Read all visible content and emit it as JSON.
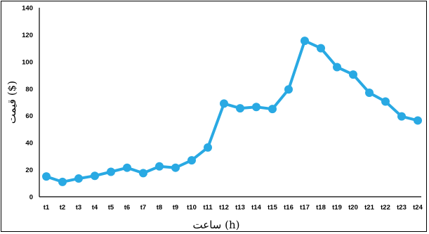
{
  "chart_data": {
    "type": "line",
    "title": "",
    "xlabel": "ساعت (h)",
    "ylabel": "قیمت ($)",
    "categories": [
      "t1",
      "t2",
      "t3",
      "t4",
      "t5",
      "t6",
      "t7",
      "t8",
      "t9",
      "t10",
      "t11",
      "t12",
      "t13",
      "t14",
      "t15",
      "t16",
      "t17",
      "t18",
      "t19",
      "t20",
      "t21",
      "t22",
      "t23",
      "t24"
    ],
    "series": [
      {
        "values": [
          15,
          11,
          13.5,
          15.5,
          18.5,
          21.5,
          17.5,
          22.5,
          21.5,
          27,
          36.5,
          69,
          65.5,
          66.5,
          65,
          79.5,
          115.5,
          110,
          96,
          90.5,
          77,
          70.5,
          59.5,
          56.5
        ]
      }
    ],
    "ylim": [
      0,
      140
    ],
    "yticks": [
      0,
      20,
      40,
      60,
      80,
      100,
      120,
      140
    ],
    "grid": false,
    "legend": "none",
    "colors": {
      "line": "#29a9e3",
      "marker": "#29a9e3",
      "axis": "#000000"
    }
  }
}
